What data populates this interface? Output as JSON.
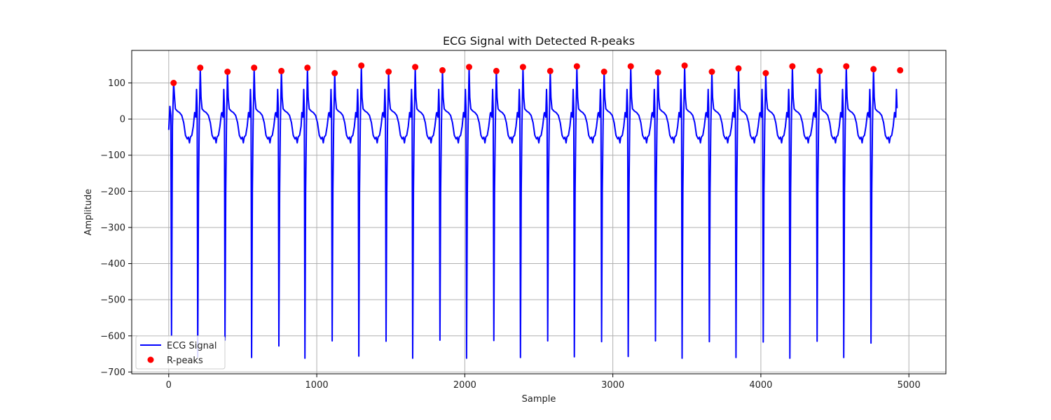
{
  "chart_data": {
    "type": "line",
    "title": "ECG Signal with Detected R-peaks",
    "xlabel": "Sample",
    "ylabel": "Amplitude",
    "xlim": [
      -250,
      5250
    ],
    "ylim": [
      -705,
      190
    ],
    "xticks": [
      0,
      1000,
      2000,
      3000,
      4000,
      5000
    ],
    "yticks": [
      -700,
      -600,
      -500,
      -400,
      -300,
      -200,
      -100,
      0,
      100
    ],
    "grid": true,
    "legend_position": "lower-left",
    "series": [
      {
        "name": "ECG Signal",
        "kind": "line",
        "color": "#0000ff",
        "x_start": 0,
        "x_end": 5000,
        "q_depths": [
          -600,
          -658,
          -612,
          -660,
          -628,
          -662,
          -614,
          -656,
          -615,
          -662,
          -612,
          -662,
          -613,
          -660,
          -614,
          -658,
          -616,
          -657,
          -614,
          -662,
          -616,
          -660,
          -617,
          -662,
          -615,
          -660,
          -620
        ]
      },
      {
        "name": "R-peaks",
        "kind": "scatter",
        "color": "#ff0000",
        "x": [
          33,
          213,
          397,
          577,
          761,
          937,
          1121,
          1301,
          1485,
          1665,
          1849,
          2029,
          2213,
          2393,
          2577,
          2757,
          2941,
          3121,
          3305,
          3485,
          3669,
          3849,
          4033,
          4213,
          4397,
          4577,
          4761,
          4941
        ],
        "y": [
          100,
          142,
          131,
          142,
          133,
          142,
          127,
          148,
          131,
          144,
          135,
          144,
          133,
          144,
          133,
          146,
          131,
          146,
          129,
          148,
          131,
          140,
          127,
          146,
          133,
          146,
          138,
          135
        ]
      }
    ]
  }
}
